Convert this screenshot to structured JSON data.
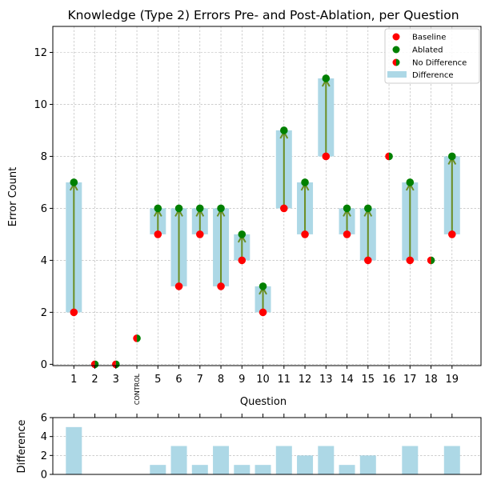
{
  "colors": {
    "baseline": "#ff0000",
    "ablated": "#008000",
    "bar": "#add8e6",
    "arrow": "#6b8e23",
    "grid": "#b0b0b0"
  },
  "chart_data": [
    {
      "type": "scatter",
      "title": "Knowledge (Type 2) Errors Pre- and Post-Ablation, per Question",
      "xlabel": "Question",
      "ylabel": "Error Count",
      "ylim": [
        0,
        13
      ],
      "yticks": [
        0,
        2,
        4,
        6,
        8,
        10,
        12
      ],
      "grid": true,
      "legend_position": "top-right",
      "legend": [
        "Baseline",
        "Ablated",
        "No Difference",
        "Difference"
      ],
      "categories": [
        "1",
        "2",
        "3",
        "CONTROL",
        "5",
        "6",
        "7",
        "8",
        "9",
        "10",
        "11",
        "12",
        "13",
        "14",
        "15",
        "16",
        "17",
        "18",
        "19"
      ],
      "series": [
        {
          "name": "Baseline",
          "values": [
            2,
            0,
            0,
            1,
            5,
            3,
            5,
            3,
            4,
            2,
            6,
            5,
            8,
            5,
            4,
            8,
            4,
            4,
            5
          ]
        },
        {
          "name": "Ablated",
          "values": [
            7,
            0,
            0,
            1,
            6,
            6,
            6,
            6,
            5,
            3,
            9,
            7,
            11,
            6,
            6,
            8,
            7,
            4,
            8
          ]
        }
      ]
    },
    {
      "type": "bar",
      "ylabel": "Difference",
      "ylim": [
        0,
        6
      ],
      "yticks": [
        0,
        2,
        4,
        6
      ],
      "grid": true,
      "categories": [
        "1",
        "2",
        "3",
        "CONTROL",
        "5",
        "6",
        "7",
        "8",
        "9",
        "10",
        "11",
        "12",
        "13",
        "14",
        "15",
        "16",
        "17",
        "18",
        "19"
      ],
      "values": [
        5,
        0,
        0,
        0,
        1,
        3,
        1,
        3,
        1,
        1,
        3,
        2,
        3,
        1,
        2,
        0,
        3,
        0,
        3
      ]
    }
  ]
}
